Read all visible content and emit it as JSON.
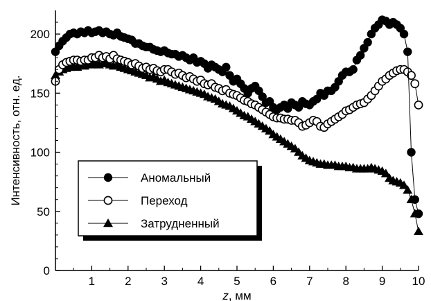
{
  "chart_data": {
    "type": "scatter",
    "xlabel_var": "z",
    "xlabel_unit": ", мм",
    "ylabel": "Интенсивность, отн. ед.",
    "xlim": [
      0,
      10
    ],
    "ylim": [
      0,
      220
    ],
    "xticks": [
      1,
      2,
      3,
      4,
      5,
      6,
      7,
      8,
      9,
      10
    ],
    "yticks": [
      0,
      50,
      100,
      150,
      200
    ],
    "grid": false,
    "legend_position": "bottom-left",
    "series": [
      {
        "name": "Аномальный",
        "marker": "filled-circle",
        "color": "#000000",
        "points": [
          [
            0.0,
            185
          ],
          [
            0.1,
            190
          ],
          [
            0.2,
            194
          ],
          [
            0.3,
            197
          ],
          [
            0.4,
            200
          ],
          [
            0.5,
            201
          ],
          [
            0.6,
            200
          ],
          [
            0.7,
            202
          ],
          [
            0.8,
            201
          ],
          [
            0.9,
            203
          ],
          [
            1.0,
            201
          ],
          [
            1.1,
            202
          ],
          [
            1.2,
            203
          ],
          [
            1.3,
            201
          ],
          [
            1.4,
            202
          ],
          [
            1.5,
            200
          ],
          [
            1.6,
            199
          ],
          [
            1.7,
            201
          ],
          [
            1.8,
            198
          ],
          [
            1.9,
            197
          ],
          [
            2.0,
            196
          ],
          [
            2.1,
            195
          ],
          [
            2.2,
            192
          ],
          [
            2.3,
            192
          ],
          [
            2.4,
            190
          ],
          [
            2.5,
            189
          ],
          [
            2.6,
            189
          ],
          [
            2.7,
            187
          ],
          [
            2.8,
            186
          ],
          [
            2.9,
            185
          ],
          [
            3.0,
            186
          ],
          [
            3.1,
            184
          ],
          [
            3.2,
            183
          ],
          [
            3.3,
            183
          ],
          [
            3.4,
            181
          ],
          [
            3.5,
            182
          ],
          [
            3.6,
            180
          ],
          [
            3.7,
            178
          ],
          [
            3.8,
            180
          ],
          [
            3.9,
            176
          ],
          [
            4.0,
            177
          ],
          [
            4.1,
            175
          ],
          [
            4.2,
            171
          ],
          [
            4.3,
            174
          ],
          [
            4.4,
            172
          ],
          [
            4.5,
            170
          ],
          [
            4.6,
            168
          ],
          [
            4.7,
            172
          ],
          [
            4.8,
            165
          ],
          [
            4.9,
            160
          ],
          [
            5.0,
            162
          ],
          [
            5.1,
            158
          ],
          [
            5.2,
            154
          ],
          [
            5.3,
            150
          ],
          [
            5.4,
            154
          ],
          [
            5.5,
            156
          ],
          [
            5.6,
            152
          ],
          [
            5.7,
            147
          ],
          [
            5.8,
            142
          ],
          [
            5.9,
            143
          ],
          [
            6.0,
            138
          ],
          [
            6.1,
            136
          ],
          [
            6.2,
            138
          ],
          [
            6.3,
            140
          ],
          [
            6.4,
            137
          ],
          [
            6.5,
            142
          ],
          [
            6.6,
            140
          ],
          [
            6.7,
            138
          ],
          [
            6.8,
            143
          ],
          [
            6.9,
            141
          ],
          [
            7.0,
            140
          ],
          [
            7.1,
            143
          ],
          [
            7.2,
            145
          ],
          [
            7.3,
            150
          ],
          [
            7.4,
            148
          ],
          [
            7.5,
            152
          ],
          [
            7.6,
            152
          ],
          [
            7.7,
            155
          ],
          [
            7.8,
            160
          ],
          [
            7.9,
            165
          ],
          [
            8.0,
            168
          ],
          [
            8.1,
            168
          ],
          [
            8.2,
            170
          ],
          [
            8.3,
            178
          ],
          [
            8.4,
            182
          ],
          [
            8.5,
            188
          ],
          [
            8.6,
            193
          ],
          [
            8.7,
            200
          ],
          [
            8.8,
            205
          ],
          [
            8.9,
            208
          ],
          [
            9.0,
            212
          ],
          [
            9.1,
            211
          ],
          [
            9.2,
            208
          ],
          [
            9.3,
            210
          ],
          [
            9.4,
            208
          ],
          [
            9.5,
            205
          ],
          [
            9.6,
            200
          ],
          [
            9.7,
            185
          ],
          [
            9.8,
            100
          ],
          [
            9.9,
            60
          ],
          [
            10.0,
            48
          ]
        ]
      },
      {
        "name": "Переход",
        "marker": "open-circle",
        "color": "#000000",
        "points": [
          [
            0.0,
            160
          ],
          [
            0.1,
            170
          ],
          [
            0.2,
            174
          ],
          [
            0.3,
            176
          ],
          [
            0.4,
            177
          ],
          [
            0.5,
            178
          ],
          [
            0.6,
            178
          ],
          [
            0.7,
            177
          ],
          [
            0.8,
            178
          ],
          [
            0.9,
            178
          ],
          [
            1.0,
            180
          ],
          [
            1.1,
            180
          ],
          [
            1.2,
            182
          ],
          [
            1.3,
            180
          ],
          [
            1.4,
            181
          ],
          [
            1.5,
            179
          ],
          [
            1.6,
            182
          ],
          [
            1.7,
            179
          ],
          [
            1.8,
            178
          ],
          [
            1.9,
            177
          ],
          [
            2.0,
            176
          ],
          [
            2.1,
            174
          ],
          [
            2.2,
            175
          ],
          [
            2.3,
            173
          ],
          [
            2.4,
            171
          ],
          [
            2.5,
            172
          ],
          [
            2.6,
            170
          ],
          [
            2.7,
            171
          ],
          [
            2.8,
            169
          ],
          [
            2.9,
            168
          ],
          [
            3.0,
            170
          ],
          [
            3.1,
            170
          ],
          [
            3.2,
            168
          ],
          [
            3.3,
            166
          ],
          [
            3.4,
            167
          ],
          [
            3.5,
            165
          ],
          [
            3.6,
            163
          ],
          [
            3.7,
            164
          ],
          [
            3.8,
            162
          ],
          [
            3.9,
            160
          ],
          [
            4.0,
            161
          ],
          [
            4.1,
            158
          ],
          [
            4.2,
            157
          ],
          [
            4.3,
            158
          ],
          [
            4.4,
            155
          ],
          [
            4.5,
            154
          ],
          [
            4.6,
            152
          ],
          [
            4.7,
            153
          ],
          [
            4.8,
            150
          ],
          [
            4.9,
            149
          ],
          [
            5.0,
            148
          ],
          [
            5.1,
            146
          ],
          [
            5.2,
            144
          ],
          [
            5.3,
            143
          ],
          [
            5.4,
            141
          ],
          [
            5.5,
            140
          ],
          [
            5.6,
            138
          ],
          [
            5.7,
            136
          ],
          [
            5.8,
            134
          ],
          [
            5.9,
            132
          ],
          [
            6.0,
            130
          ],
          [
            6.1,
            129
          ],
          [
            6.2,
            129
          ],
          [
            6.3,
            128
          ],
          [
            6.4,
            128
          ],
          [
            6.5,
            127
          ],
          [
            6.6,
            127
          ],
          [
            6.7,
            125
          ],
          [
            6.8,
            122
          ],
          [
            6.9,
            123
          ],
          [
            7.0,
            125
          ],
          [
            7.1,
            127
          ],
          [
            7.2,
            126
          ],
          [
            7.3,
            122
          ],
          [
            7.4,
            121
          ],
          [
            7.5,
            124
          ],
          [
            7.6,
            126
          ],
          [
            7.7,
            128
          ],
          [
            7.8,
            130
          ],
          [
            7.9,
            132
          ],
          [
            8.0,
            135
          ],
          [
            8.1,
            136
          ],
          [
            8.2,
            138
          ],
          [
            8.3,
            140
          ],
          [
            8.4,
            141
          ],
          [
            8.5,
            142
          ],
          [
            8.6,
            145
          ],
          [
            8.7,
            148
          ],
          [
            8.8,
            152
          ],
          [
            8.9,
            156
          ],
          [
            9.0,
            160
          ],
          [
            9.1,
            162
          ],
          [
            9.2,
            165
          ],
          [
            9.3,
            167
          ],
          [
            9.4,
            169
          ],
          [
            9.5,
            170
          ],
          [
            9.6,
            170
          ],
          [
            9.7,
            168
          ],
          [
            9.8,
            165
          ],
          [
            9.9,
            158
          ],
          [
            10.0,
            140
          ]
        ]
      },
      {
        "name": "Затрудненный",
        "marker": "filled-triangle",
        "color": "#000000",
        "points": [
          [
            0.0,
            165
          ],
          [
            0.1,
            168
          ],
          [
            0.2,
            170
          ],
          [
            0.3,
            171
          ],
          [
            0.4,
            172
          ],
          [
            0.5,
            173
          ],
          [
            0.6,
            172
          ],
          [
            0.7,
            174
          ],
          [
            0.8,
            173
          ],
          [
            0.9,
            175
          ],
          [
            1.0,
            174
          ],
          [
            1.1,
            176
          ],
          [
            1.2,
            174
          ],
          [
            1.3,
            175
          ],
          [
            1.4,
            176
          ],
          [
            1.5,
            174
          ],
          [
            1.6,
            173
          ],
          [
            1.7,
            174
          ],
          [
            1.8,
            172
          ],
          [
            1.9,
            171
          ],
          [
            2.0,
            170
          ],
          [
            2.1,
            169
          ],
          [
            2.2,
            168
          ],
          [
            2.3,
            167
          ],
          [
            2.4,
            166
          ],
          [
            2.5,
            165
          ],
          [
            2.6,
            163
          ],
          [
            2.7,
            164
          ],
          [
            2.8,
            162
          ],
          [
            2.9,
            160
          ],
          [
            3.0,
            161
          ],
          [
            3.1,
            159
          ],
          [
            3.2,
            158
          ],
          [
            3.3,
            157
          ],
          [
            3.4,
            156
          ],
          [
            3.5,
            155
          ],
          [
            3.6,
            154
          ],
          [
            3.7,
            153
          ],
          [
            3.8,
            152
          ],
          [
            3.9,
            151
          ],
          [
            4.0,
            150
          ],
          [
            4.1,
            149
          ],
          [
            4.2,
            147
          ],
          [
            4.3,
            146
          ],
          [
            4.4,
            145
          ],
          [
            4.5,
            143
          ],
          [
            4.6,
            141
          ],
          [
            4.7,
            140
          ],
          [
            4.8,
            139
          ],
          [
            4.9,
            137
          ],
          [
            5.0,
            135
          ],
          [
            5.1,
            133
          ],
          [
            5.2,
            131
          ],
          [
            5.3,
            130
          ],
          [
            5.4,
            128
          ],
          [
            5.5,
            126
          ],
          [
            5.6,
            124
          ],
          [
            5.7,
            122
          ],
          [
            5.8,
            120
          ],
          [
            5.9,
            118
          ],
          [
            6.0,
            115
          ],
          [
            6.1,
            113
          ],
          [
            6.2,
            111
          ],
          [
            6.3,
            109
          ],
          [
            6.4,
            107
          ],
          [
            6.5,
            105
          ],
          [
            6.6,
            103
          ],
          [
            6.7,
            100
          ],
          [
            6.8,
            97
          ],
          [
            6.9,
            95
          ],
          [
            7.0,
            93
          ],
          [
            7.1,
            92
          ],
          [
            7.2,
            91
          ],
          [
            7.3,
            90
          ],
          [
            7.4,
            90
          ],
          [
            7.5,
            89
          ],
          [
            7.6,
            89
          ],
          [
            7.7,
            89
          ],
          [
            7.8,
            88
          ],
          [
            7.9,
            88
          ],
          [
            8.0,
            88
          ],
          [
            8.1,
            87
          ],
          [
            8.2,
            87
          ],
          [
            8.3,
            86
          ],
          [
            8.4,
            86
          ],
          [
            8.5,
            86
          ],
          [
            8.6,
            86
          ],
          [
            8.7,
            87
          ],
          [
            8.8,
            86
          ],
          [
            8.9,
            85
          ],
          [
            9.0,
            84
          ],
          [
            9.1,
            82
          ],
          [
            9.2,
            78
          ],
          [
            9.3,
            76
          ],
          [
            9.4,
            75
          ],
          [
            9.5,
            74
          ],
          [
            9.6,
            72
          ],
          [
            9.7,
            68
          ],
          [
            9.8,
            60
          ],
          [
            9.9,
            48
          ],
          [
            10.0,
            33
          ]
        ]
      }
    ]
  }
}
